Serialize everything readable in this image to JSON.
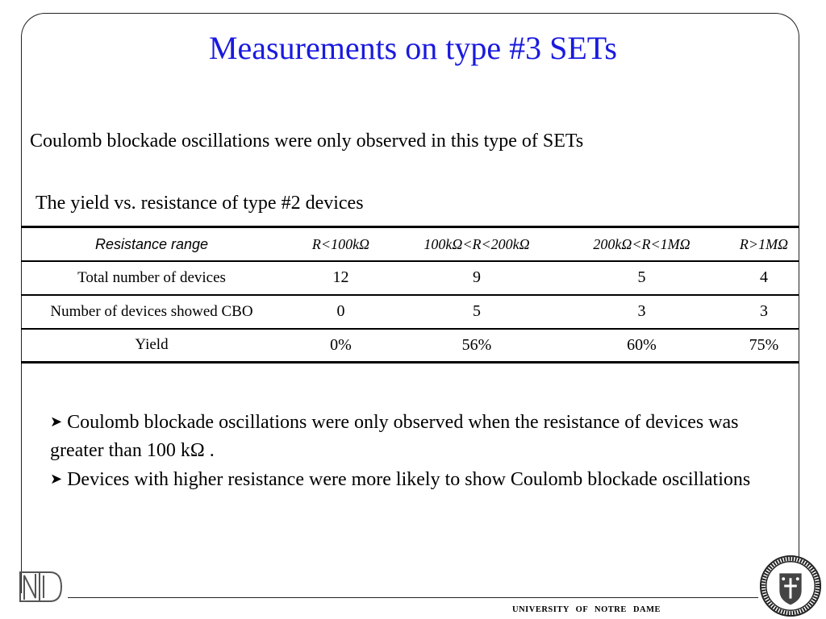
{
  "slide": {
    "title": "Measurements on type #3 SETs",
    "subtitle": "Coulomb blockade oscillations were only observed in this type of SETs",
    "table_caption": "The yield vs. resistance of type #2 devices"
  },
  "table": {
    "headers": [
      "Resistance range",
      "R<100kΩ",
      "100kΩ<R<200kΩ",
      "200kΩ<R<1MΩ",
      "R>1MΩ"
    ],
    "rows": [
      [
        "Total number of devices",
        "12",
        "9",
        "5",
        "4"
      ],
      [
        "Number of devices showed CBO",
        "0",
        "5",
        "3",
        "3"
      ],
      [
        "Yield",
        "0%",
        "56%",
        "60%",
        "75%"
      ]
    ]
  },
  "bullets": [
    "Coulomb blockade oscillations were only observed when the resistance of devices was greater than 100 kΩ .",
    "Devices with higher resistance were more likely to show Coulomb blockade oscillations"
  ],
  "footer": {
    "institution": "UNIVERSITY OF NOTRE DAME",
    "logo_text": "ND",
    "seal_icon": "university-seal-icon"
  }
}
